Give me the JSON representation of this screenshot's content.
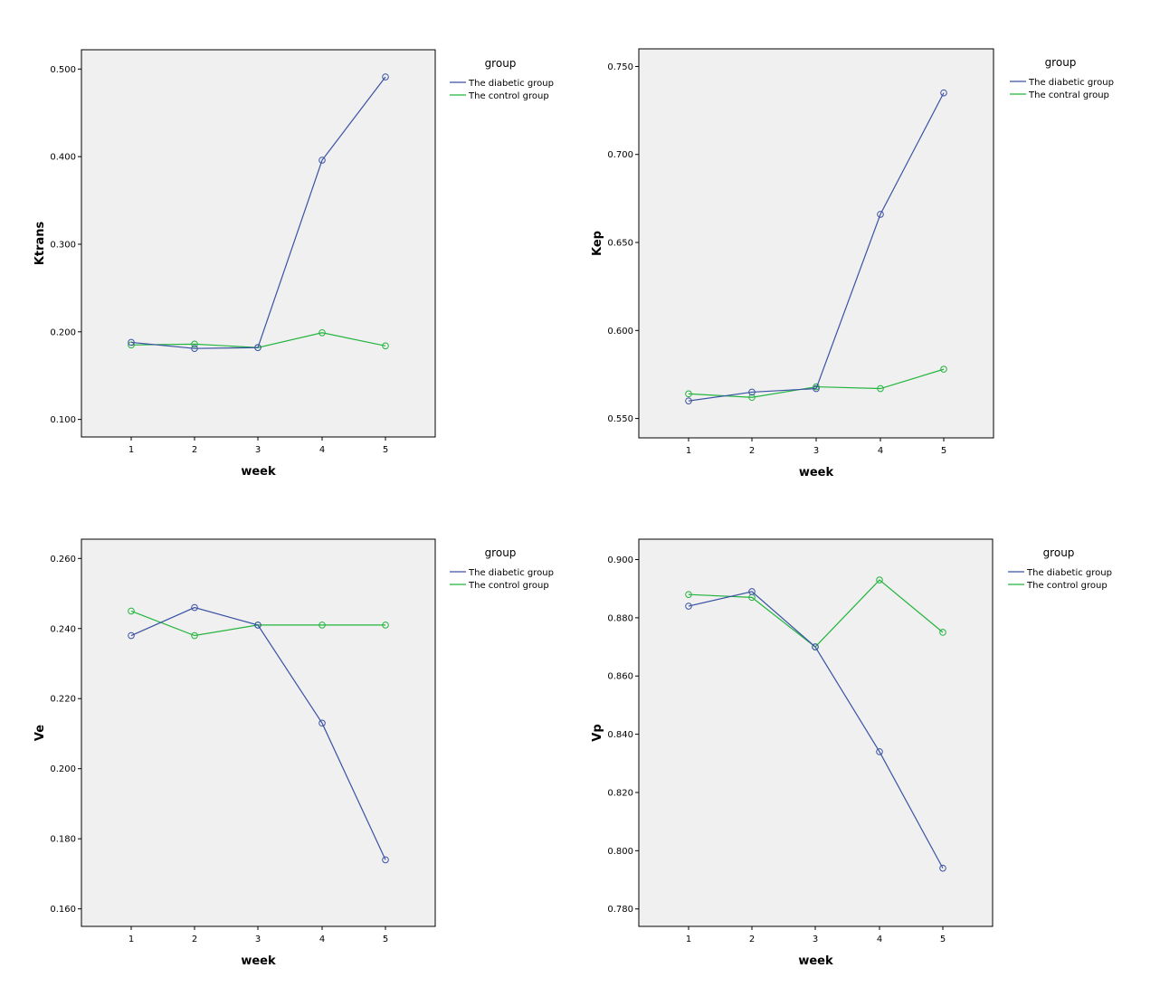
{
  "colors": {
    "diabetic": "#3a52a3",
    "control": "#22b43c",
    "plot_bg": "#f0f0f0",
    "frame": "#000000"
  },
  "chart_data": [
    {
      "type": "line",
      "ylabel": "Ktrans",
      "xlabel": "week",
      "categories": [
        "1",
        "2",
        "3",
        "4",
        "5"
      ],
      "ylim": [
        0.08,
        0.522
      ],
      "yticks": [
        0.1,
        0.2,
        0.3,
        0.4,
        0.5
      ],
      "ytick_labels": [
        "0.100",
        "0.200",
        "0.300",
        "0.400",
        "0.500"
      ],
      "legend_title": "group",
      "series": [
        {
          "name": "The diabetic group",
          "color_key": "diabetic",
          "values": [
            0.188,
            0.181,
            0.182,
            0.396,
            0.491
          ]
        },
        {
          "name": "The control group",
          "color_key": "control",
          "values": [
            0.185,
            0.186,
            0.182,
            0.199,
            0.184
          ]
        }
      ]
    },
    {
      "type": "line",
      "ylabel": "Kep",
      "xlabel": "week",
      "categories": [
        "1",
        "2",
        "3",
        "4",
        "5"
      ],
      "ylim": [
        0.539,
        0.76
      ],
      "yticks": [
        0.55,
        0.6,
        0.65,
        0.7,
        0.75
      ],
      "ytick_labels": [
        "0.550",
        "0.600",
        "0.650",
        "0.700",
        "0.750"
      ],
      "legend_title": "group",
      "series": [
        {
          "name": "The diabetic group",
          "color_key": "diabetic",
          "values": [
            0.56,
            0.565,
            0.567,
            0.666,
            0.735
          ]
        },
        {
          "name": "The contral group",
          "color_key": "control",
          "values": [
            0.564,
            0.562,
            0.568,
            0.567,
            0.578
          ]
        }
      ]
    },
    {
      "type": "line",
      "ylabel": "Ve",
      "xlabel": "week",
      "categories": [
        "1",
        "2",
        "3",
        "4",
        "5"
      ],
      "ylim": [
        0.155,
        0.2655
      ],
      "yticks": [
        0.16,
        0.18,
        0.2,
        0.22,
        0.24,
        0.26
      ],
      "ytick_labels": [
        "0.160",
        "0.180",
        "0.200",
        "0.220",
        "0.240",
        "0.260"
      ],
      "legend_title": "group",
      "series": [
        {
          "name": "The diabetic group",
          "color_key": "diabetic",
          "values": [
            0.238,
            0.246,
            0.241,
            0.213,
            0.174
          ]
        },
        {
          "name": "The control group",
          "color_key": "control",
          "values": [
            0.245,
            0.238,
            0.241,
            0.241,
            0.241
          ]
        }
      ]
    },
    {
      "type": "line",
      "ylabel": "Vp",
      "xlabel": "week",
      "categories": [
        "1",
        "2",
        "3",
        "4",
        "5"
      ],
      "ylim": [
        0.774,
        0.907
      ],
      "yticks": [
        0.78,
        0.8,
        0.82,
        0.84,
        0.86,
        0.88,
        0.9
      ],
      "ytick_labels": [
        "0.780",
        "0.800",
        "0.820",
        "0.840",
        "0.860",
        "0.880",
        "0.900"
      ],
      "legend_title": "group",
      "series": [
        {
          "name": "The diabetic group",
          "color_key": "diabetic",
          "values": [
            0.884,
            0.889,
            0.87,
            0.834,
            0.794
          ]
        },
        {
          "name": "The control group",
          "color_key": "control",
          "values": [
            0.888,
            0.887,
            0.87,
            0.893,
            0.875
          ]
        }
      ]
    }
  ]
}
